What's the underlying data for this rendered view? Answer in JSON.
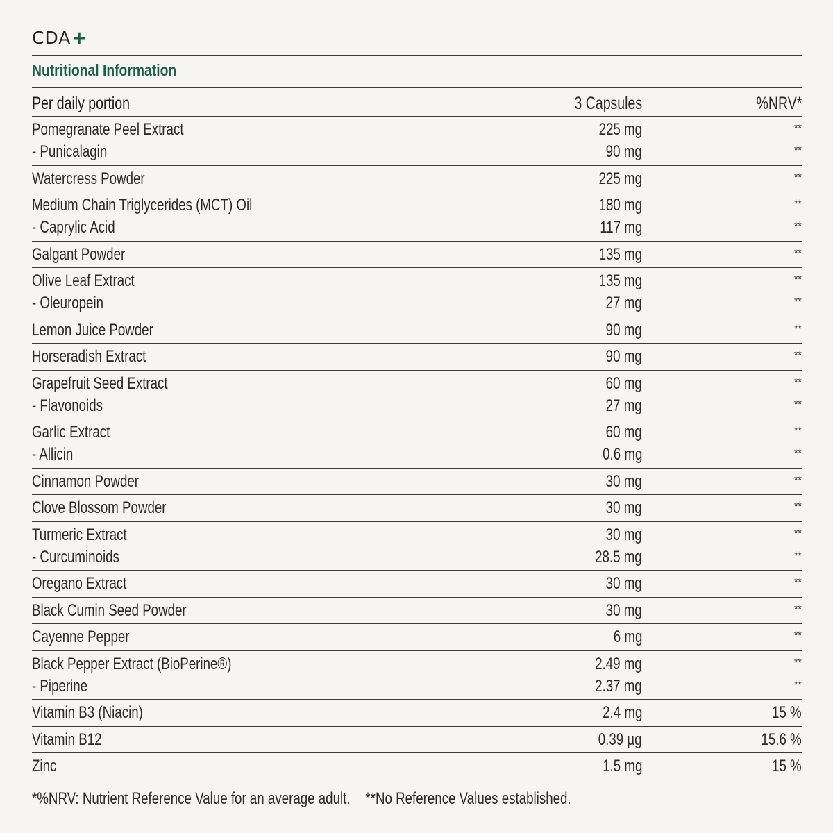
{
  "brand": {
    "name": "CDA",
    "mark": "+"
  },
  "title": "Nutritional Information",
  "columns": {
    "label": "Per daily portion",
    "amount": "3 Capsules",
    "nrv": "%NRV*"
  },
  "rows": [
    {
      "lines": [
        {
          "name": "Pomegranate Peel Extract",
          "amount": "225 mg",
          "nrv": "**"
        },
        {
          "name": "- Punicalagin",
          "amount": "90 mg",
          "nrv": "**"
        }
      ]
    },
    {
      "lines": [
        {
          "name": "Watercress Powder",
          "amount": "225 mg",
          "nrv": "**"
        }
      ]
    },
    {
      "lines": [
        {
          "name": "Medium Chain Triglycerides (MCT) Oil",
          "amount": "180 mg",
          "nrv": "**"
        },
        {
          "name": "- Caprylic Acid",
          "amount": "117 mg",
          "nrv": "**"
        }
      ]
    },
    {
      "lines": [
        {
          "name": "Galgant Powder",
          "amount": "135 mg",
          "nrv": "**"
        }
      ]
    },
    {
      "lines": [
        {
          "name": "Olive Leaf Extract",
          "amount": "135 mg",
          "nrv": "**"
        },
        {
          "name": "- Oleuropein",
          "amount": "27 mg",
          "nrv": "**"
        }
      ]
    },
    {
      "lines": [
        {
          "name": "Lemon Juice Powder",
          "amount": "90 mg",
          "nrv": "**"
        }
      ]
    },
    {
      "lines": [
        {
          "name": "Horseradish Extract",
          "amount": "90 mg",
          "nrv": "**"
        }
      ]
    },
    {
      "lines": [
        {
          "name": "Grapefruit Seed Extract",
          "amount": "60 mg",
          "nrv": "**"
        },
        {
          "name": "- Flavonoids",
          "amount": "27 mg",
          "nrv": "**"
        }
      ]
    },
    {
      "lines": [
        {
          "name": "Garlic Extract",
          "amount": "60 mg",
          "nrv": "**"
        },
        {
          "name": "- Allicin",
          "amount": "0.6 mg",
          "nrv": "**"
        }
      ]
    },
    {
      "lines": [
        {
          "name": "Cinnamon Powder",
          "amount": "30 mg",
          "nrv": "**"
        }
      ]
    },
    {
      "lines": [
        {
          "name": "Clove Blossom Powder",
          "amount": "30 mg",
          "nrv": "**"
        }
      ]
    },
    {
      "lines": [
        {
          "name": "Turmeric Extract",
          "amount": "30 mg",
          "nrv": "**"
        },
        {
          "name": "- Curcuminoids",
          "amount": "28.5 mg",
          "nrv": "**"
        }
      ]
    },
    {
      "lines": [
        {
          "name": "Oregano Extract",
          "amount": "30 mg",
          "nrv": "**"
        }
      ]
    },
    {
      "lines": [
        {
          "name": "Black Cumin Seed Powder",
          "amount": "30 mg",
          "nrv": "**"
        }
      ]
    },
    {
      "lines": [
        {
          "name": "Cayenne Pepper",
          "amount": "6 mg",
          "nrv": "**"
        }
      ]
    },
    {
      "lines": [
        {
          "name": "Black Pepper Extract (BioPerine®)",
          "amount": "2.49 mg",
          "nrv": "**"
        },
        {
          "name": "- Piperine",
          "amount": "2.37 mg",
          "nrv": "**"
        }
      ]
    },
    {
      "lines": [
        {
          "name": "Vitamin B3 (Niacin)",
          "amount": "2.4 mg",
          "nrv": "15 %"
        }
      ]
    },
    {
      "lines": [
        {
          "name": "Vitamin B12",
          "amount": "0.39 µg",
          "nrv": "15.6 %"
        }
      ]
    },
    {
      "lines": [
        {
          "name": "Zinc",
          "amount": "1.5 mg",
          "nrv": "15 %"
        }
      ]
    }
  ],
  "footnotes": {
    "nrv": "*%NRV: Nutrient Reference Value for an average adult.",
    "no_ref": "**No Reference Values established."
  },
  "colors": {
    "accent": "#1f5d4e",
    "text": "#2a2a2a",
    "background": "#f6f5f2"
  }
}
